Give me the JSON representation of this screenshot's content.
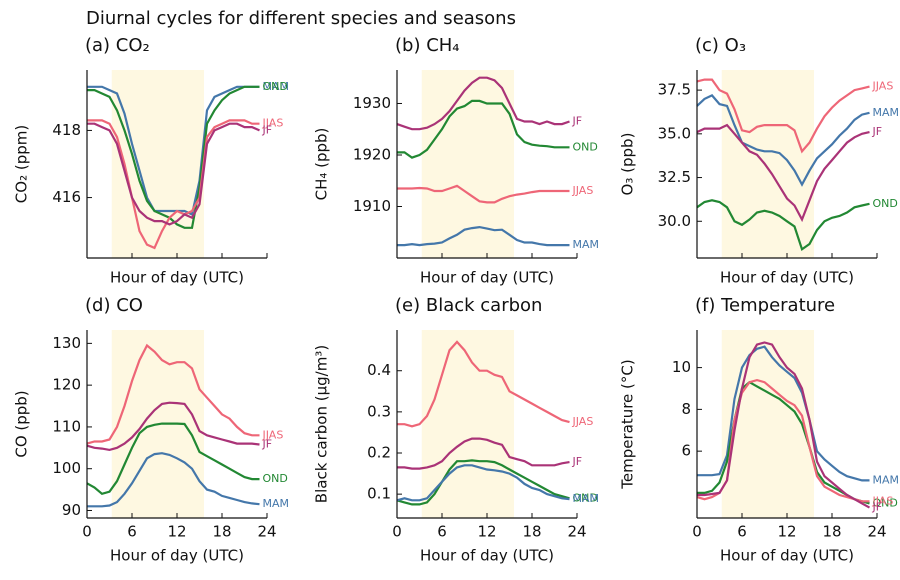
{
  "title": "Diurnal cycles for different species and seasons",
  "chart_data": [
    {
      "type": "line",
      "title": "(a) CO₂",
      "xlabel": "Hour of day (UTC)",
      "ylabel": "CO₂ (ppm)",
      "x": [
        0,
        1,
        2,
        3,
        4,
        5,
        6,
        7,
        8,
        9,
        10,
        11,
        12,
        13,
        14,
        15,
        16,
        17,
        18,
        19,
        20,
        21,
        22,
        23
      ],
      "xlim": [
        0,
        24
      ],
      "xticks": [
        0,
        6,
        12,
        18,
        24
      ],
      "xtick_labels": false,
      "shaded": [
        3.3,
        15.6
      ],
      "ylim": [
        414.2,
        419.8
      ],
      "yticks": [
        416,
        418
      ],
      "series": [
        {
          "name": "MAM",
          "color": "#4477aa",
          "values": [
            419.3,
            419.3,
            419.3,
            419.2,
            419.1,
            418.5,
            417.6,
            416.8,
            416.0,
            415.6,
            415.6,
            415.6,
            415.6,
            415.6,
            415.5,
            416.5,
            418.6,
            419.0,
            419.1,
            419.2,
            419.3,
            419.3,
            419.3,
            419.3
          ]
        },
        {
          "name": "OND",
          "color": "#228833",
          "values": [
            419.2,
            419.2,
            419.1,
            419.0,
            418.6,
            418.0,
            417.3,
            416.5,
            415.9,
            415.6,
            415.5,
            415.4,
            415.2,
            415.1,
            415.1,
            416.3,
            418.2,
            418.6,
            418.9,
            419.1,
            419.2,
            419.3,
            419.3,
            419.3
          ]
        },
        {
          "name": "JJAS",
          "color": "#ee6677",
          "values": [
            418.3,
            418.3,
            418.3,
            418.2,
            417.8,
            417.0,
            416.0,
            415.0,
            414.6,
            414.5,
            415.0,
            415.4,
            415.6,
            415.5,
            415.6,
            416.0,
            417.8,
            418.1,
            418.2,
            418.3,
            418.3,
            418.3,
            418.2,
            418.2
          ]
        },
        {
          "name": "JF",
          "color": "#aa3377",
          "values": [
            418.2,
            418.2,
            418.1,
            418.0,
            417.6,
            416.8,
            416.0,
            415.6,
            415.4,
            415.3,
            415.3,
            415.2,
            415.3,
            415.5,
            415.4,
            415.8,
            417.6,
            418.0,
            418.1,
            418.2,
            418.2,
            418.1,
            418.1,
            418.0
          ]
        }
      ]
    },
    {
      "type": "line",
      "title": "(b) CH₄",
      "xlabel": "Hour of day (UTC)",
      "ylabel": "CH₄ (ppb)",
      "x": [
        0,
        1,
        2,
        3,
        4,
        5,
        6,
        7,
        8,
        9,
        10,
        11,
        12,
        13,
        14,
        15,
        16,
        17,
        18,
        19,
        20,
        21,
        22,
        23
      ],
      "xlim": [
        0,
        24
      ],
      "xticks": [
        0,
        6,
        12,
        18,
        24
      ],
      "xtick_labels": false,
      "shaded": [
        3.3,
        15.6
      ],
      "ylim": [
        1900,
        1936.5
      ],
      "yticks": [
        1910,
        1920,
        1930
      ],
      "series": [
        {
          "name": "JF",
          "color": "#aa3377",
          "values": [
            1926,
            1925.5,
            1925,
            1925,
            1925.3,
            1926,
            1927,
            1928.5,
            1930.5,
            1932.5,
            1934,
            1935,
            1935,
            1934.5,
            1933,
            1930,
            1927,
            1926.5,
            1926.5,
            1926,
            1926.5,
            1926,
            1926,
            1926.5
          ]
        },
        {
          "name": "OND",
          "color": "#228833",
          "values": [
            1920.5,
            1920.5,
            1919.5,
            1920,
            1921,
            1923,
            1925,
            1927.5,
            1929,
            1929.5,
            1930.5,
            1930.5,
            1930,
            1930,
            1930,
            1928,
            1924,
            1922.5,
            1922,
            1921.8,
            1921.7,
            1921.5,
            1921.5,
            1921.5
          ]
        },
        {
          "name": "JJAS",
          "color": "#ee6677",
          "values": [
            1913.5,
            1913.5,
            1913.5,
            1913.6,
            1913.5,
            1913,
            1913,
            1913.5,
            1914,
            1913,
            1912,
            1911,
            1910.8,
            1910.8,
            1911.5,
            1912,
            1912.3,
            1912.5,
            1912.8,
            1913,
            1913,
            1913,
            1913,
            1913
          ]
        },
        {
          "name": "MAM",
          "color": "#4477aa",
          "values": [
            1902.5,
            1902.5,
            1902.7,
            1902.5,
            1902.7,
            1902.8,
            1903,
            1903.8,
            1904.5,
            1905.5,
            1905.8,
            1906,
            1905.7,
            1905.4,
            1905.5,
            1904.5,
            1903.5,
            1903,
            1903,
            1902.7,
            1902.5,
            1902.5,
            1902.5,
            1902.5
          ]
        }
      ]
    },
    {
      "type": "line",
      "title": "(c) O₃",
      "xlabel": "Hour of day (UTC)",
      "ylabel": "O₃ (ppb)",
      "x": [
        0,
        1,
        2,
        3,
        4,
        5,
        6,
        7,
        8,
        9,
        10,
        11,
        12,
        13,
        14,
        15,
        16,
        17,
        18,
        19,
        20,
        21,
        22,
        23
      ],
      "xlim": [
        0,
        24
      ],
      "xticks": [
        0,
        6,
        12,
        18,
        24
      ],
      "xtick_labels": false,
      "shaded": [
        3.3,
        15.6
      ],
      "ylim": [
        27.9,
        38.65
      ],
      "yticks": [
        {
          "value": 30,
          "label": "30.0"
        },
        32.5,
        {
          "value": 35,
          "label": "35.0"
        },
        37.5
      ],
      "series": [
        {
          "name": "JJAS",
          "color": "#ee6677",
          "values": [
            38.0,
            38.1,
            38.1,
            37.5,
            37.3,
            36.4,
            35.2,
            35.1,
            35.4,
            35.5,
            35.5,
            35.5,
            35.5,
            35.2,
            34.0,
            34.5,
            35.3,
            36.0,
            36.5,
            36.9,
            37.2,
            37.5,
            37.6,
            37.7
          ]
        },
        {
          "name": "MAM",
          "color": "#4477aa",
          "values": [
            36.6,
            37.0,
            37.2,
            36.7,
            36.6,
            35.5,
            34.5,
            34.3,
            34.1,
            34.0,
            34.0,
            33.9,
            33.5,
            32.9,
            32.1,
            32.9,
            33.6,
            34.0,
            34.4,
            34.9,
            35.3,
            35.8,
            36.1,
            36.2
          ]
        },
        {
          "name": "JF",
          "color": "#aa3377",
          "values": [
            35.1,
            35.3,
            35.3,
            35.3,
            35.5,
            35.0,
            34.5,
            34.0,
            33.8,
            33.3,
            32.7,
            32.0,
            31.3,
            30.9,
            30.1,
            31.2,
            32.3,
            33.0,
            33.5,
            34.0,
            34.5,
            34.8,
            35.0,
            35.1
          ]
        },
        {
          "name": "OND",
          "color": "#228833",
          "values": [
            30.8,
            31.1,
            31.2,
            31.1,
            30.8,
            30.0,
            29.8,
            30.1,
            30.5,
            30.6,
            30.5,
            30.3,
            30.0,
            29.7,
            28.4,
            28.7,
            29.5,
            30.0,
            30.2,
            30.3,
            30.5,
            30.8,
            30.9,
            31.0
          ]
        }
      ]
    },
    {
      "type": "line",
      "title": "(d) CO",
      "xlabel": "Hour of day (UTC)",
      "ylabel": "CO (ppb)",
      "x": [
        0,
        1,
        2,
        3,
        4,
        5,
        6,
        7,
        8,
        9,
        10,
        11,
        12,
        13,
        14,
        15,
        16,
        17,
        18,
        19,
        20,
        21,
        22,
        23
      ],
      "xlim": [
        0,
        24
      ],
      "xticks": [
        0,
        6,
        12,
        18,
        24
      ],
      "xtick_labels": true,
      "shaded": [
        3.3,
        15.6
      ],
      "ylim": [
        88.2,
        133.2
      ],
      "yticks": [
        90,
        100,
        110,
        120,
        130
      ],
      "series": [
        {
          "name": "JJAS",
          "color": "#ee6677",
          "values": [
            106,
            106.5,
            106.5,
            107,
            110,
            115,
            121,
            126,
            129.5,
            128,
            126,
            125,
            125.5,
            125.5,
            124,
            119,
            117,
            115,
            113,
            112,
            110,
            108.5,
            108,
            108
          ]
        },
        {
          "name": "JF",
          "color": "#aa3377",
          "values": [
            105.5,
            105,
            104.8,
            104.5,
            105,
            106,
            107.5,
            109.5,
            112,
            114,
            115.5,
            115.8,
            115.7,
            115.5,
            113,
            109,
            108,
            107.5,
            107,
            106.5,
            106,
            106,
            106,
            105.8
          ]
        },
        {
          "name": "OND",
          "color": "#228833",
          "values": [
            96.5,
            95.5,
            94,
            94.5,
            97,
            101,
            105,
            108.5,
            110,
            110.5,
            110.8,
            110.8,
            110.8,
            110.7,
            108,
            104,
            103,
            102,
            101,
            100,
            99,
            98,
            97.5,
            97.5
          ]
        },
        {
          "name": "MAM",
          "color": "#4477aa",
          "values": [
            91,
            91,
            91,
            91.2,
            92,
            94,
            96.5,
            99.5,
            102.5,
            103.5,
            103.7,
            103.3,
            102.5,
            101.5,
            100,
            97,
            95,
            94.5,
            93.5,
            93,
            92.5,
            92,
            91.7,
            91.5
          ]
        }
      ]
    },
    {
      "type": "line",
      "title": "(e) Black carbon",
      "xlabel": "Hour of day (UTC)",
      "ylabel": "Black carbon (µg/m³)",
      "x": [
        0,
        1,
        2,
        3,
        4,
        5,
        6,
        7,
        8,
        9,
        10,
        11,
        12,
        13,
        14,
        15,
        16,
        17,
        18,
        19,
        20,
        21,
        22,
        23
      ],
      "xlim": [
        0,
        24
      ],
      "xticks": [
        0,
        6,
        12,
        18,
        24
      ],
      "xtick_labels": true,
      "shaded": [
        3.3,
        15.6
      ],
      "ylim": [
        0.042,
        0.499
      ],
      "yticks": [
        0.1,
        0.2,
        0.3,
        0.4
      ],
      "series": [
        {
          "name": "JJAS",
          "color": "#ee6677",
          "values": [
            0.27,
            0.27,
            0.265,
            0.27,
            0.29,
            0.33,
            0.39,
            0.45,
            0.47,
            0.45,
            0.42,
            0.4,
            0.4,
            0.39,
            0.385,
            0.35,
            0.34,
            0.33,
            0.32,
            0.31,
            0.3,
            0.29,
            0.28,
            0.275
          ]
        },
        {
          "name": "JF",
          "color": "#aa3377",
          "values": [
            0.165,
            0.165,
            0.162,
            0.162,
            0.165,
            0.17,
            0.18,
            0.2,
            0.215,
            0.228,
            0.235,
            0.235,
            0.232,
            0.225,
            0.22,
            0.19,
            0.185,
            0.18,
            0.17,
            0.17,
            0.17,
            0.17,
            0.175,
            0.178
          ]
        },
        {
          "name": "OND",
          "color": "#228833",
          "values": [
            0.085,
            0.08,
            0.075,
            0.075,
            0.08,
            0.1,
            0.13,
            0.16,
            0.18,
            0.18,
            0.182,
            0.18,
            0.18,
            0.178,
            0.17,
            0.16,
            0.15,
            0.14,
            0.13,
            0.12,
            0.11,
            0.1,
            0.095,
            0.09
          ]
        },
        {
          "name": "MAM",
          "color": "#4477aa",
          "values": [
            0.085,
            0.09,
            0.085,
            0.085,
            0.09,
            0.11,
            0.13,
            0.15,
            0.165,
            0.17,
            0.17,
            0.165,
            0.16,
            0.158,
            0.155,
            0.15,
            0.14,
            0.125,
            0.115,
            0.11,
            0.1,
            0.095,
            0.09,
            0.088
          ]
        }
      ]
    },
    {
      "type": "line",
      "title": "(f) Temperature",
      "xlabel": "Hour of day (UTC)",
      "ylabel": "Temperature (°C)",
      "x": [
        0,
        1,
        2,
        3,
        4,
        5,
        6,
        7,
        8,
        9,
        10,
        11,
        12,
        13,
        14,
        15,
        16,
        17,
        18,
        19,
        20,
        21,
        22,
        23
      ],
      "xlim": [
        0,
        24
      ],
      "xticks": [
        0,
        6,
        12,
        18,
        24
      ],
      "xtick_labels": true,
      "shaded": [
        3.3,
        15.6
      ],
      "ylim": [
        2.8,
        11.8
      ],
      "yticks": [
        6,
        8,
        10
      ],
      "series": [
        {
          "name": "MAM",
          "color": "#4477aa",
          "values": [
            4.85,
            4.85,
            4.85,
            4.9,
            5.8,
            8.5,
            10.0,
            10.6,
            10.9,
            11.0,
            10.5,
            10.1,
            9.8,
            9.5,
            8.8,
            7.5,
            6.0,
            5.6,
            5.3,
            5.0,
            4.8,
            4.7,
            4.6,
            4.6
          ]
        },
        {
          "name": "OND",
          "color": "#228833",
          "values": [
            4.0,
            4.0,
            4.1,
            4.5,
            5.5,
            7.5,
            9.0,
            9.3,
            9.1,
            8.9,
            8.7,
            8.5,
            8.2,
            7.9,
            7.3,
            6.2,
            5.0,
            4.5,
            4.3,
            4.1,
            3.9,
            3.7,
            3.6,
            3.5
          ]
        },
        {
          "name": "JJAS",
          "color": "#ee6677",
          "values": [
            3.8,
            3.7,
            3.8,
            4.0,
            4.6,
            7.5,
            8.8,
            9.3,
            9.4,
            9.3,
            9.0,
            8.7,
            8.4,
            8.2,
            7.7,
            6.2,
            4.8,
            4.3,
            4.1,
            3.9,
            3.8,
            3.7,
            3.6,
            3.6
          ]
        },
        {
          "name": "JF",
          "color": "#aa3377",
          "values": [
            3.9,
            3.9,
            3.95,
            4.0,
            4.6,
            7.0,
            9.0,
            10.5,
            11.1,
            11.2,
            11.1,
            10.5,
            10.0,
            9.7,
            9.0,
            7.5,
            5.5,
            4.8,
            4.5,
            4.2,
            3.9,
            3.7,
            3.5,
            3.3
          ]
        }
      ]
    }
  ]
}
